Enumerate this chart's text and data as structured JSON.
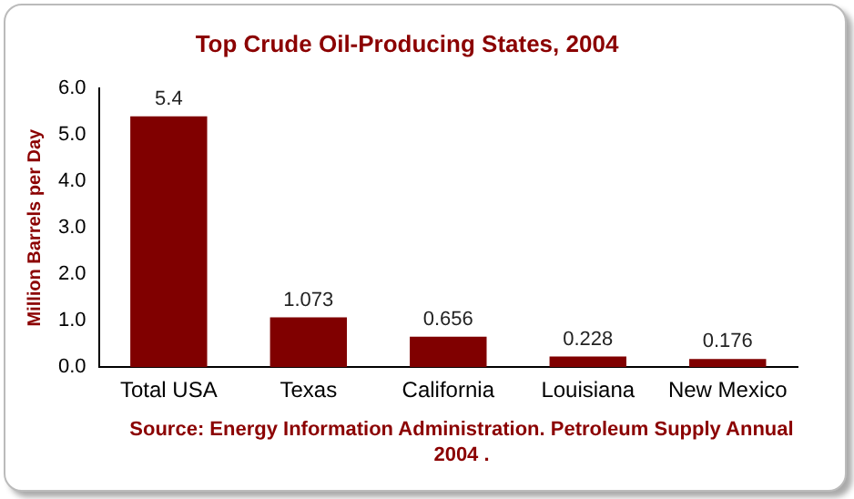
{
  "chart_data": {
    "type": "bar",
    "title": "Top Crude Oil-Producing States, 2004",
    "ylabel": "Million Barrels per Day",
    "categories": [
      "Total USA",
      "Texas",
      "California",
      "Louisiana",
      "New Mexico"
    ],
    "values": [
      5.4,
      1.073,
      0.656,
      0.228,
      0.176
    ],
    "color": "#800000",
    "ylim": [
      0,
      6
    ],
    "yticks": [
      {
        "value": 0,
        "label": "0.0"
      },
      {
        "value": 1,
        "label": "1.0"
      },
      {
        "value": 2,
        "label": "2.0"
      },
      {
        "value": 3,
        "label": "3.0"
      },
      {
        "value": 4,
        "label": "4.0"
      },
      {
        "value": 5,
        "label": "5.0"
      },
      {
        "value": 6,
        "label": "6.0"
      }
    ],
    "data_labels": true,
    "legend": false,
    "annotations": [
      "Source: Energy Information Administration. Petroleum Supply Annual 2004 ."
    ]
  }
}
